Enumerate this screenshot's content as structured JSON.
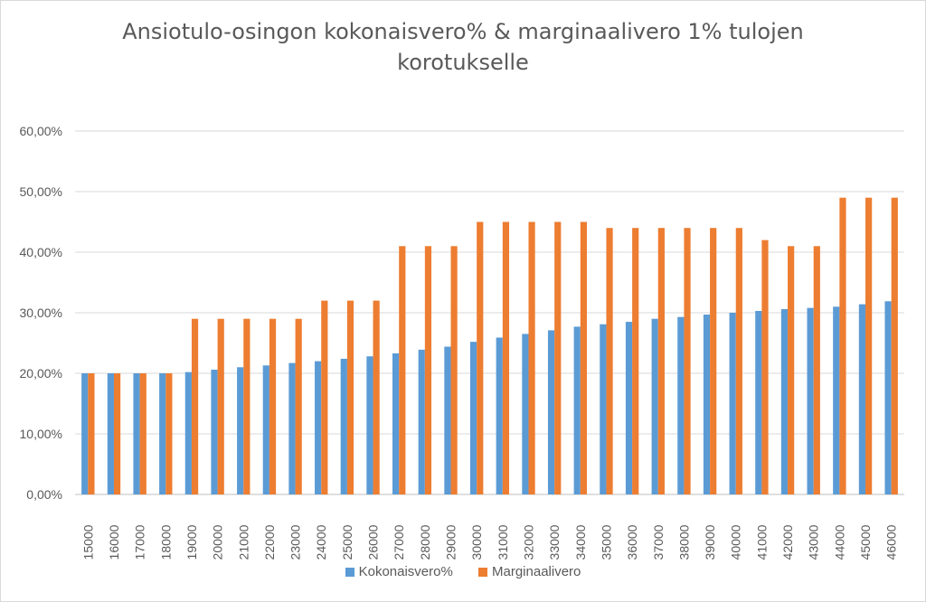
{
  "chart_data": {
    "type": "bar",
    "title_lines": [
      "Ansiotulo-osingon kokonaisvero% & marginaalivero 1% tulojen",
      "korotukselle"
    ],
    "categories": [
      "15000",
      "16000",
      "17000",
      "18000",
      "19000",
      "20000",
      "21000",
      "22000",
      "23000",
      "24000",
      "25000",
      "26000",
      "27000",
      "28000",
      "29000",
      "30000",
      "31000",
      "32000",
      "33000",
      "34000",
      "35000",
      "36000",
      "37000",
      "38000",
      "39000",
      "40000",
      "41000",
      "42000",
      "43000",
      "44000",
      "45000",
      "46000"
    ],
    "series": [
      {
        "name": "Kokonaisvero%",
        "color": "#5b9bd5",
        "values": [
          20.0,
          20.0,
          20.0,
          20.0,
          20.2,
          20.6,
          21.0,
          21.3,
          21.7,
          22.0,
          22.4,
          22.8,
          23.3,
          23.9,
          24.4,
          25.2,
          25.9,
          26.5,
          27.1,
          27.7,
          28.1,
          28.5,
          29.0,
          29.3,
          29.7,
          30.0,
          30.3,
          30.6,
          30.8,
          31.0,
          31.4,
          31.9
        ]
      },
      {
        "name": "Marginaalivero",
        "color": "#ed7d31",
        "values": [
          20.0,
          20.0,
          20.0,
          20.0,
          29.0,
          29.0,
          29.0,
          29.0,
          29.0,
          32.0,
          32.0,
          32.0,
          41.0,
          41.0,
          41.0,
          45.0,
          45.0,
          45.0,
          45.0,
          45.0,
          44.0,
          44.0,
          44.0,
          44.0,
          44.0,
          44.0,
          42.0,
          41.0,
          41.0,
          49.0,
          49.0,
          49.0
        ]
      }
    ],
    "y_ticks": [
      "0,00%",
      "10,00%",
      "20,00%",
      "30,00%",
      "40,00%",
      "50,00%",
      "60,00%"
    ],
    "ylim": [
      0,
      60
    ],
    "grid": true,
    "legend_position": "bottom"
  }
}
